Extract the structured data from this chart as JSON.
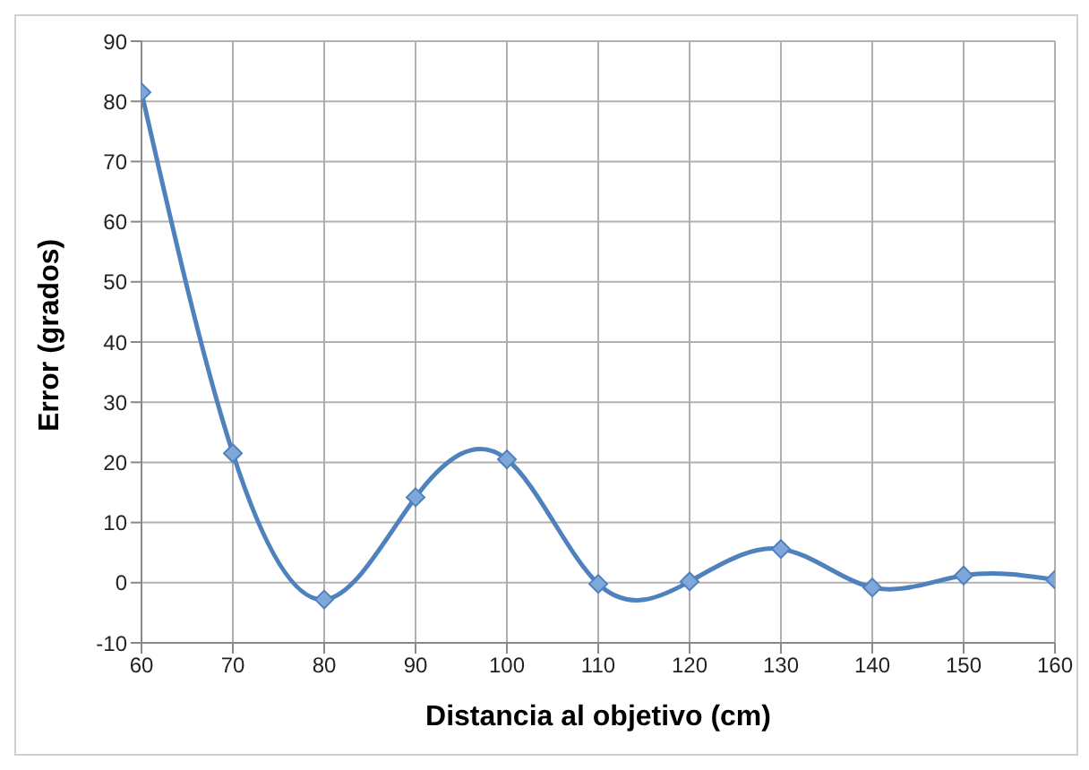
{
  "chart_data": {
    "type": "line",
    "xlabel": "Distancia al objetivo (cm)",
    "ylabel": "Error (grados)",
    "x": [
      60,
      70,
      80,
      90,
      100,
      110,
      120,
      130,
      140,
      150,
      160
    ],
    "series": [
      {
        "color": "#4f81bd",
        "values": [
          81.5,
          21.5,
          -2.8,
          14.2,
          20.5,
          -0.2,
          0.2,
          5.6,
          -0.8,
          1.2,
          0.5
        ]
      }
    ],
    "xlim": [
      60,
      160
    ],
    "xticks": [
      60,
      70,
      80,
      90,
      100,
      110,
      120,
      130,
      140,
      150,
      160
    ],
    "ylim": [
      -10,
      90
    ],
    "yticks": [
      -10,
      0,
      10,
      20,
      30,
      40,
      50,
      60,
      70,
      80,
      90
    ],
    "grid": true,
    "marker": "diamond",
    "line_style": "solid",
    "legend": false
  }
}
